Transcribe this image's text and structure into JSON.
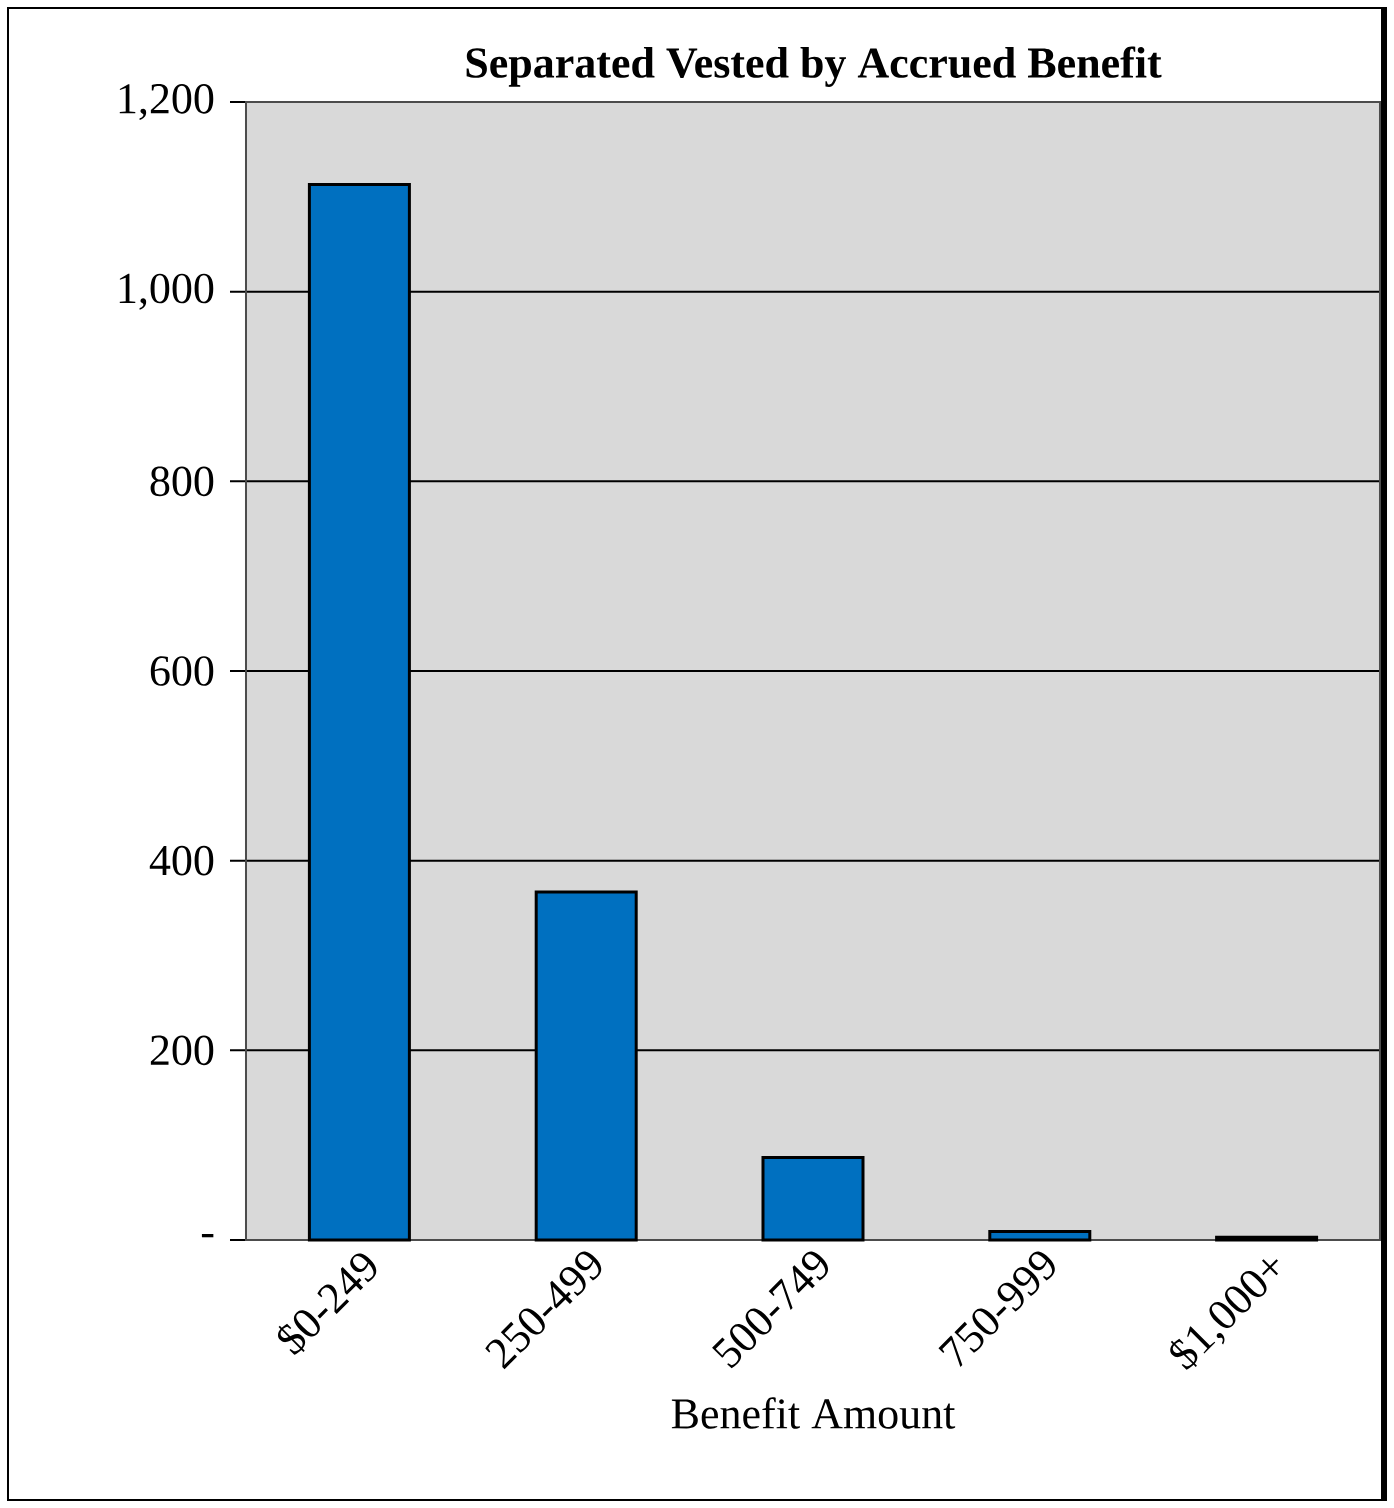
{
  "chart_data": {
    "type": "bar",
    "title": "Separated Vested by Accrued Benefit",
    "xlabel": "Benefit Amount",
    "categories": [
      "$0-249",
      "250-499",
      "500-749",
      "750-999",
      "$1,000+"
    ],
    "values": [
      1113,
      367,
      87,
      9,
      3
    ],
    "color": "#0070c0",
    "ylim": [
      0,
      1200
    ],
    "yticks": [
      {
        "value": 0,
        "label": "-"
      },
      200,
      400,
      600,
      800,
      {
        "value": 1000,
        "label": "1,000"
      },
      {
        "value": 1200,
        "label": "1,200"
      }
    ],
    "grid": "y"
  }
}
